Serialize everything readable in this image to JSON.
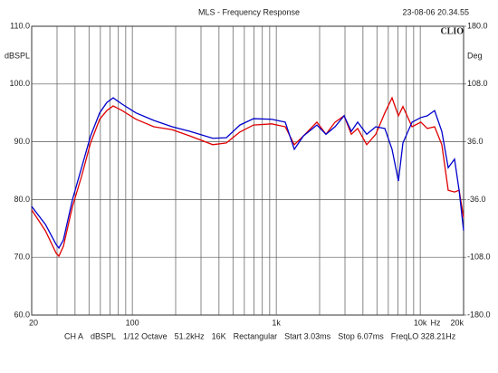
{
  "chart_data": {
    "type": "line",
    "title": "MLS - Frequency Response",
    "timestamp": "23-08-06 20.34.55",
    "logo": "CLIO",
    "ylabel": "dBSPL",
    "y2label": "Deg",
    "xlabel": "Hz",
    "xscale": "log",
    "xlim": [
      20,
      20000
    ],
    "ylim": [
      60,
      110
    ],
    "y2lim": [
      -180,
      180
    ],
    "xticks": [
      20,
      100,
      {
        "value": 1000,
        "label": "1k"
      },
      {
        "value": 10000,
        "label": "10k"
      },
      {
        "value": 20000,
        "label": "20k"
      }
    ],
    "x_grid": [
      30,
      40,
      50,
      60,
      70,
      80,
      90,
      200,
      300,
      400,
      500,
      600,
      700,
      800,
      900,
      2000,
      3000,
      4000,
      5000,
      6000,
      7000,
      8000,
      9000
    ],
    "yticks": [
      {
        "value": 60,
        "label": "60.0"
      },
      {
        "value": 70,
        "label": "70.0"
      },
      {
        "value": 80,
        "label": "80.0"
      },
      {
        "value": 90,
        "label": "90.0"
      },
      {
        "value": 100,
        "label": "100.0"
      },
      {
        "value": 110,
        "label": "110.0"
      }
    ],
    "y2ticks": [
      {
        "value": -180,
        "label": "-180.0"
      },
      {
        "value": -108,
        "label": "-108.0"
      },
      {
        "value": -36,
        "label": "-36.0"
      },
      {
        "value": 36,
        "label": "36.0"
      },
      {
        "value": 108,
        "label": "108.0"
      },
      {
        "value": 180,
        "label": "180.0"
      }
    ],
    "grid": true,
    "x": [
      20,
      24.9,
      29.6,
      30.9,
      33.2,
      38.4,
      44.4,
      51.3,
      59.3,
      66.5,
      73.6,
      85.1,
      106,
      141,
      189,
      252,
      362,
      450,
      559,
      695,
      929,
      1154,
      1334,
      1542,
      1915,
      2214,
      2559,
      2958,
      3320,
      3675,
      4248,
      4910,
      5676,
      6370,
      7050,
      7580,
      8770,
      10100,
      11200,
      12580,
      14120,
      15640,
      17300,
      18620,
      20000
    ],
    "series": [
      {
        "color": "#e00000",
        "values": [
          78.2,
          74.6,
          70.7,
          70.2,
          71.9,
          78.8,
          84,
          89.8,
          93.9,
          95.4,
          96.2,
          95.4,
          93.9,
          92.6,
          92.1,
          91,
          89.5,
          89.8,
          91.7,
          92.9,
          93.1,
          92.6,
          89.5,
          91,
          93.4,
          91.3,
          93.4,
          94.5,
          91.3,
          92.3,
          89.5,
          91.3,
          95,
          97.6,
          94.5,
          96.1,
          92.6,
          93.4,
          92.3,
          92.6,
          89.5,
          81.6,
          81.3,
          81.6,
          76.9
        ]
      },
      {
        "color": "#0000cc",
        "values": [
          78.8,
          75.7,
          72.2,
          71.6,
          73,
          80,
          85.5,
          91,
          95,
          96.8,
          97.6,
          96.5,
          95,
          93.7,
          92.6,
          91.8,
          90.6,
          90.7,
          92.9,
          94,
          93.9,
          93.4,
          88.7,
          91,
          92.9,
          91.3,
          92.6,
          94.5,
          91.8,
          93.4,
          91.3,
          92.6,
          92.3,
          88.7,
          83.2,
          89.8,
          93.4,
          94.2,
          94.5,
          95.4,
          91.8,
          85.5,
          87,
          81.6,
          74.6
        ]
      }
    ],
    "footer": [
      "CH A",
      "dBSPL",
      "1/12 Octave",
      "51.2kHz",
      "16K",
      "Rectangular",
      "Start 3.03ms",
      "Stop 6.07ms",
      "FreqLO 328.21Hz"
    ]
  }
}
